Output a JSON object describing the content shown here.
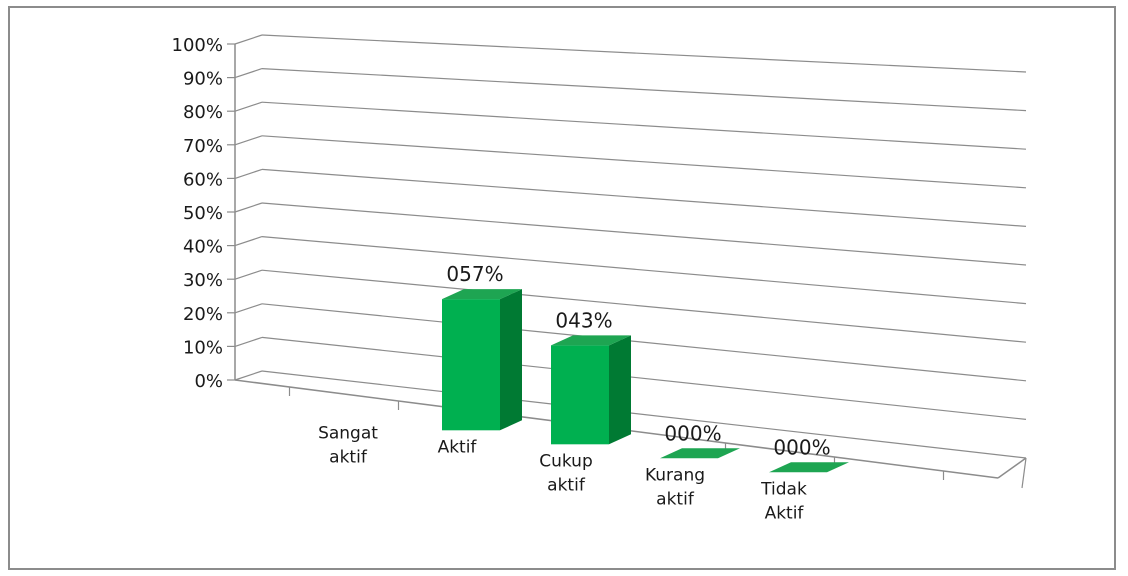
{
  "chart_data": {
    "type": "bar",
    "title": "",
    "xlabel": "",
    "ylabel": "",
    "categories": [
      [
        "Sangat",
        "aktif"
      ],
      [
        "Aktif"
      ],
      [
        "Cukup",
        "aktif"
      ],
      [
        "Kurang",
        "aktif"
      ],
      [
        "Tidak",
        "Aktif"
      ]
    ],
    "values": [
      null,
      57,
      43,
      0,
      0
    ],
    "data_labels": [
      "",
      "057%",
      "043%",
      "000%",
      "000%"
    ],
    "ylim": [
      0,
      100
    ],
    "yticks": [
      "0%",
      "10%",
      "20%",
      "30%",
      "40%",
      "50%",
      "60%",
      "70%",
      "80%",
      "90%",
      "100%"
    ],
    "grid": true,
    "legend": "none",
    "colors": {
      "front": "#00b050",
      "side": "#007a33",
      "top": "#1ea552",
      "grid": "#8c8c8c"
    }
  }
}
